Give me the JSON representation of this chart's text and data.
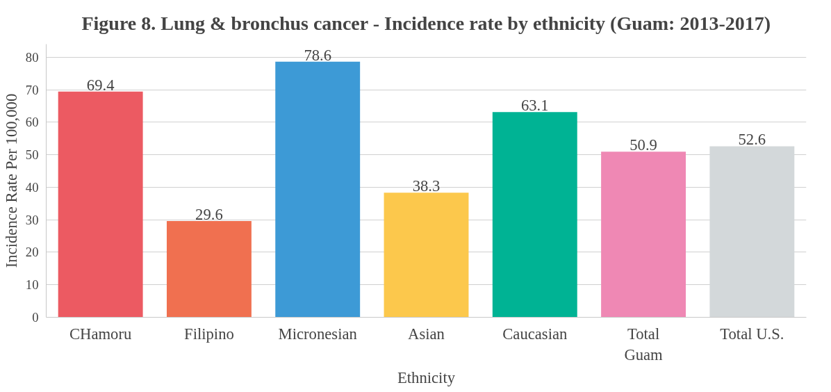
{
  "chart_data": {
    "type": "bar",
    "title": "Figure 8. Lung & bronchus cancer - Incidence rate by ethnicity (Guam: 2013-2017)",
    "xlabel": "Ethnicity",
    "ylabel": "Incidence Rate Per 100,000",
    "categories": [
      "CHamoru",
      "Filipino",
      "Micronesian",
      "Asian",
      "Caucasian",
      "Total\nGuam",
      "Total U.S."
    ],
    "values": [
      69.4,
      29.6,
      78.6,
      38.3,
      63.1,
      50.9,
      52.6
    ],
    "colors": [
      "#ec5a62",
      "#f07050",
      "#3d9ad6",
      "#fcc84c",
      "#00b394",
      "#ef88b4",
      "#d3d8da"
    ],
    "ylim": [
      0,
      84
    ],
    "yticks": [
      0,
      10,
      20,
      30,
      40,
      50,
      60,
      70,
      80
    ],
    "grid": "y",
    "data_labels": true
  }
}
